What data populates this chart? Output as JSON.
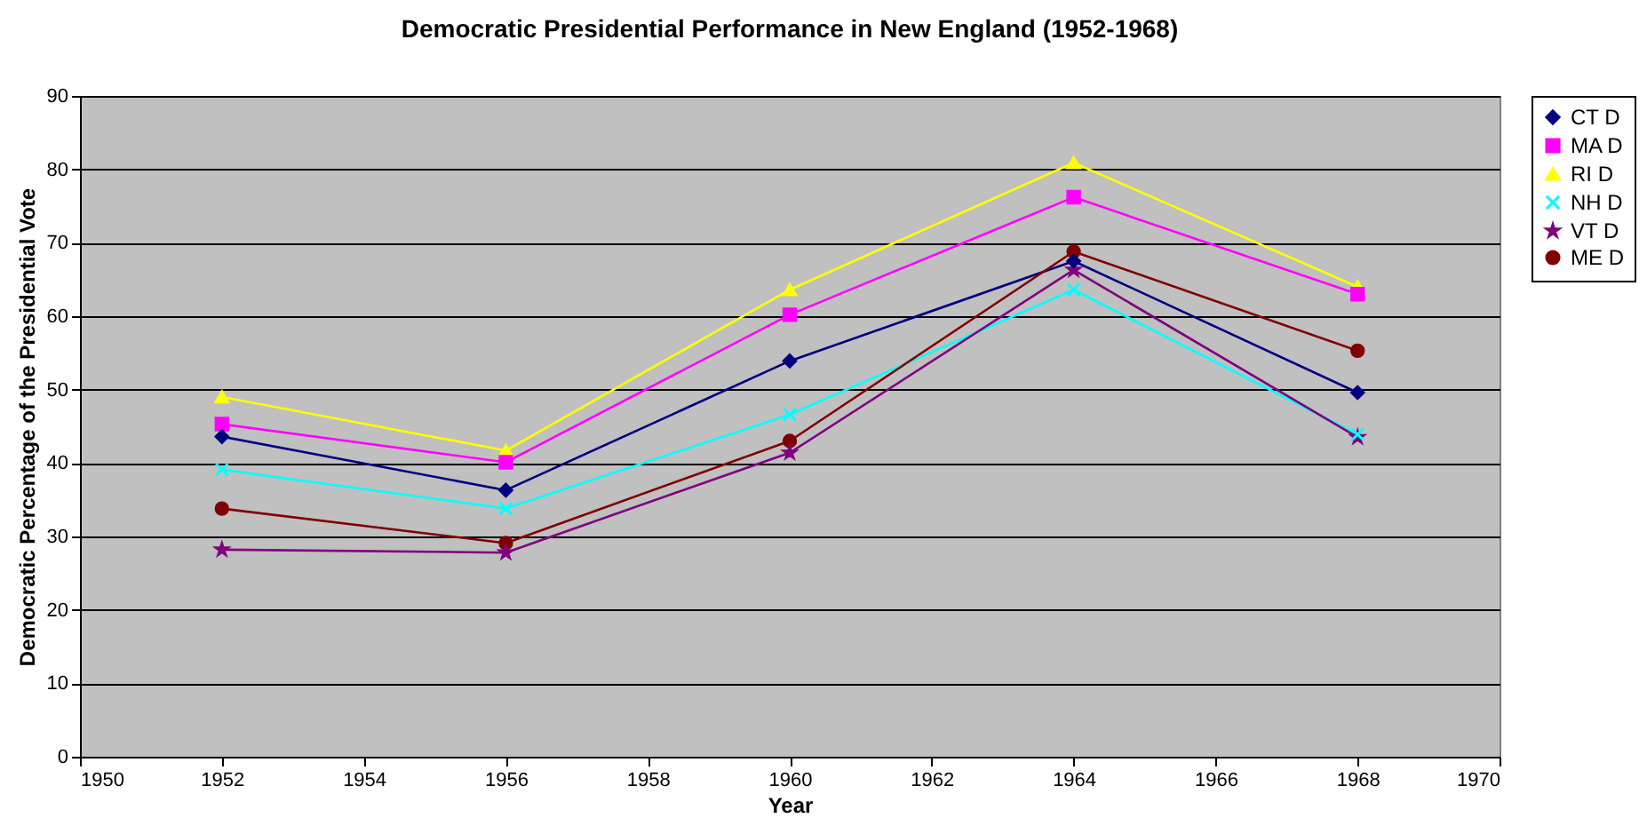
{
  "chart_data": {
    "type": "line",
    "title": "Democratic Presidential Performance in New England (1952-1968)",
    "xlabel": "Year",
    "ylabel": "Democratic Percentage of the Presidential Vote",
    "x": [
      1952,
      1956,
      1960,
      1964,
      1968
    ],
    "series": [
      {
        "name": "CT D",
        "color": "#000080",
        "marker": "diamond",
        "values": [
          43.6,
          36.3,
          53.9,
          67.5,
          49.6
        ]
      },
      {
        "name": "MA D",
        "color": "#ff00ff",
        "marker": "square",
        "values": [
          45.3,
          40.1,
          60.2,
          76.2,
          63.0
        ]
      },
      {
        "name": "RI D",
        "color": "#ffff00",
        "marker": "triangle",
        "values": [
          49.0,
          41.7,
          63.6,
          80.9,
          64.0
        ]
      },
      {
        "name": "NH D",
        "color": "#00ffff",
        "marker": "cross",
        "values": [
          39.1,
          33.8,
          46.6,
          63.6,
          43.9
        ]
      },
      {
        "name": "VT D",
        "color": "#800080",
        "marker": "star",
        "values": [
          28.2,
          27.8,
          41.4,
          66.3,
          43.5
        ]
      },
      {
        "name": "ME D",
        "color": "#800000",
        "marker": "circle",
        "values": [
          33.8,
          29.1,
          43.0,
          68.8,
          55.3
        ]
      }
    ],
    "xlim": [
      1950,
      1970
    ],
    "xticks": [
      1950,
      1952,
      1954,
      1956,
      1958,
      1960,
      1962,
      1964,
      1966,
      1968,
      1970
    ],
    "ylim": [
      0,
      90
    ],
    "yticks": [
      0,
      10,
      20,
      30,
      40,
      50,
      60,
      70,
      80,
      90
    ],
    "grid": "y",
    "legend": "right",
    "line_style": "solid"
  }
}
